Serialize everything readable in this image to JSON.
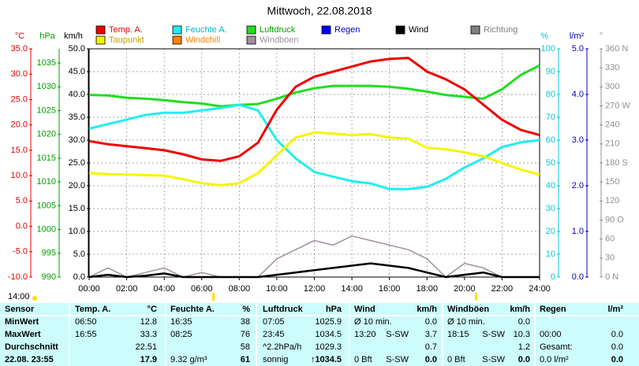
{
  "chart_data": {
    "type": "line",
    "title": "Mittwoch, 22.08.2018",
    "x": [
      0,
      1,
      2,
      3,
      4,
      5,
      6,
      7,
      8,
      9,
      10,
      11,
      12,
      13,
      14,
      15,
      16,
      17,
      18,
      19,
      20,
      21,
      22,
      23,
      24
    ],
    "xlim": [
      0,
      24
    ],
    "xticks": [
      {
        "value": 0,
        "label": "00:00"
      },
      {
        "value": 2,
        "label": "02:00"
      },
      {
        "value": 4,
        "label": "04:00"
      },
      {
        "value": 6,
        "label": "06:00"
      },
      {
        "value": 8,
        "label": "08:00"
      },
      {
        "value": 10,
        "label": "10:00"
      },
      {
        "value": 12,
        "label": "12:00"
      },
      {
        "value": 14,
        "label": "14:00"
      },
      {
        "value": 16,
        "label": "16:00"
      },
      {
        "value": 18,
        "label": "18:00"
      },
      {
        "value": 20,
        "label": "20:00"
      },
      {
        "value": 22,
        "label": "22:00"
      },
      {
        "value": 24,
        "label": "24:00"
      }
    ],
    "grid": true,
    "axes": [
      {
        "title": "°C",
        "color": "#e00000",
        "lim": [
          -10,
          35
        ],
        "ticks": [
          {
            "value": 35,
            "label": "35.0"
          },
          {
            "value": 30,
            "label": "30.0"
          },
          {
            "value": 25,
            "label": "25.0"
          },
          {
            "value": 20,
            "label": "20.0"
          },
          {
            "value": 15,
            "label": "15.0"
          },
          {
            "value": 10,
            "label": "10.0"
          },
          {
            "value": 5,
            "label": "5.0"
          },
          {
            "value": 0,
            "label": "0.0"
          },
          {
            "value": -5,
            "label": "-5.0"
          },
          {
            "value": -10,
            "label": "-10.0"
          }
        ]
      },
      {
        "title": "hPa",
        "color": "#00a000",
        "lim": [
          990,
          1038
        ],
        "ticks": [
          1035,
          1030,
          1025,
          1020,
          1015,
          1010,
          1005,
          1000,
          995,
          990
        ]
      },
      {
        "title": "km/h",
        "color": "#000000",
        "lim": [
          0,
          50
        ],
        "ticks": [
          {
            "value": 50,
            "label": "50.0"
          },
          {
            "value": 45,
            "label": "45.0"
          },
          {
            "value": 40,
            "label": "40.0"
          },
          {
            "value": 35,
            "label": "35.0"
          },
          {
            "value": 30,
            "label": "30.0"
          },
          {
            "value": 25,
            "label": "25.0"
          },
          {
            "value": 20,
            "label": "20.0"
          },
          {
            "value": 15,
            "label": "15.0"
          },
          {
            "value": 10,
            "label": "10.0"
          },
          {
            "value": 5,
            "label": "5.0"
          },
          {
            "value": 0,
            "label": "0.0"
          }
        ]
      },
      {
        "title": "%",
        "color": "#00c8d8",
        "lim": [
          0,
          100
        ],
        "ticks": [
          100,
          90,
          80,
          70,
          60,
          50,
          40,
          30,
          20,
          10,
          0
        ]
      },
      {
        "title": "l/m²",
        "color": "#0000c0",
        "lim": [
          0,
          5
        ],
        "ticks": [
          {
            "value": 5,
            "label": "5.0"
          },
          {
            "value": 4,
            "label": "4.0"
          },
          {
            "value": 3,
            "label": "3.0"
          },
          {
            "value": 2,
            "label": "2.0"
          },
          {
            "value": 1,
            "label": "1.0"
          },
          {
            "value": 0,
            "label": "0.0"
          }
        ]
      },
      {
        "title": "°",
        "color": "#909090",
        "lim": [
          0,
          360
        ],
        "ticks": [
          {
            "value": 360,
            "label": "360 N"
          },
          330,
          300,
          {
            "value": 270,
            "label": "270 W"
          },
          240,
          210,
          {
            "value": 180,
            "label": "180 S"
          },
          150,
          120,
          {
            "value": 90,
            "label": "90 O"
          },
          60,
          30,
          {
            "value": 0,
            "label": "0 N"
          }
        ]
      }
    ],
    "series": [
      {
        "name": "Temp. A.",
        "color": "#ee0000",
        "axis": 0,
        "values": [
          16.8,
          16.2,
          15.8,
          15.4,
          15.0,
          14.2,
          13.2,
          12.9,
          13.8,
          16.5,
          23,
          27.5,
          29.5,
          30.5,
          31.5,
          32.5,
          33.0,
          33.2,
          30.5,
          29,
          27,
          24,
          21,
          19,
          18
        ]
      },
      {
        "name": "Feuchte A.",
        "color": "#22eeee",
        "axis": 3,
        "values": [
          65,
          67,
          69,
          71,
          72,
          72,
          73,
          74,
          75.5,
          73,
          60,
          52,
          46,
          44,
          42,
          41,
          38.5,
          38.5,
          39.5,
          43,
          48,
          52,
          57,
          59,
          60
        ]
      },
      {
        "name": "Luftdruck",
        "color": "#22dd22",
        "axis": 1,
        "values": [
          1028.3,
          1028.2,
          1027.7,
          1027.5,
          1027.2,
          1026.8,
          1026.5,
          1025.9,
          1026.2,
          1026.4,
          1027.5,
          1028.8,
          1029.7,
          1030.2,
          1030.2,
          1030.2,
          1030,
          1029.6,
          1029,
          1028.3,
          1027.9,
          1027.5,
          1029.5,
          1032.5,
          1034.5
        ]
      },
      {
        "name": "Regen",
        "color": "#0000ff"
      },
      {
        "name": "Wind",
        "color": "#000000",
        "axis": 2,
        "values": [
          0,
          0.5,
          0,
          0.3,
          0.8,
          0,
          0,
          0,
          0,
          0,
          0.5,
          1,
          1.5,
          2,
          2.5,
          3,
          2.5,
          2,
          1,
          0,
          0.5,
          1,
          0,
          0,
          0
        ]
      },
      {
        "name": "Richtung",
        "color": "#808080"
      },
      {
        "name": "Taupunkt",
        "color": "#f5f500",
        "axis": 0,
        "values": [
          10.5,
          10.3,
          10.2,
          10.1,
          10,
          9.3,
          8.5,
          8.1,
          8.5,
          10.5,
          14,
          17.5,
          18.5,
          18.3,
          18.0,
          18.2,
          17.5,
          17.3,
          15.5,
          15.2,
          14.6,
          13.8,
          12.5,
          11.2,
          10.2
        ]
      },
      {
        "name": "Windchill",
        "color": "#ff8000"
      },
      {
        "name": "Windböen",
        "color": "#a090a0",
        "axis": 2,
        "values": [
          0,
          2,
          0,
          1,
          2,
          0,
          1,
          0,
          0,
          0,
          4,
          6,
          8,
          7,
          9,
          8,
          7,
          6,
          4,
          0,
          3,
          2,
          0,
          0,
          0
        ]
      }
    ],
    "sun_label": "14:00"
  },
  "table": {
    "header": [
      "Sensor",
      "Temp. A.",
      "°C",
      "Feuchte A.",
      "%",
      "Luftdruck",
      "hPa",
      "Wind",
      null,
      "km/h",
      "Windböen",
      null,
      "km/h",
      "Regen",
      "l/m²"
    ],
    "rows": [
      [
        "MinWert",
        "06:50",
        "12.8",
        "16:35",
        "38",
        "07:05",
        "1025.9",
        "Ø 10 min.",
        null,
        "0.0",
        "Ø 10 min.",
        null,
        "0.0",
        null,
        null
      ],
      [
        "MaxWert",
        "16:55",
        "33.3",
        "08:25",
        "76",
        "23:45",
        "1034.5",
        "13:20",
        "S-SW",
        "3.7",
        "18:15",
        "S-SW",
        "10.3",
        "00:00",
        "0.0"
      ],
      [
        "Durchschnitt",
        null,
        "22.51",
        null,
        "58",
        "^2.2hPa/h",
        "1029.3",
        null,
        null,
        "0.7",
        null,
        null,
        "1.2",
        "Gesamt:",
        "0.0"
      ],
      [
        "22.08. 23:55",
        null,
        "17.9",
        "9.32 g/m³",
        "61",
        "sonnig",
        "↑1034.5",
        "0 Bft",
        "S-SW",
        "0.0",
        "0 Bft",
        "S-SW",
        "0.0",
        "0.0 l/m²",
        "0.0"
      ]
    ]
  }
}
